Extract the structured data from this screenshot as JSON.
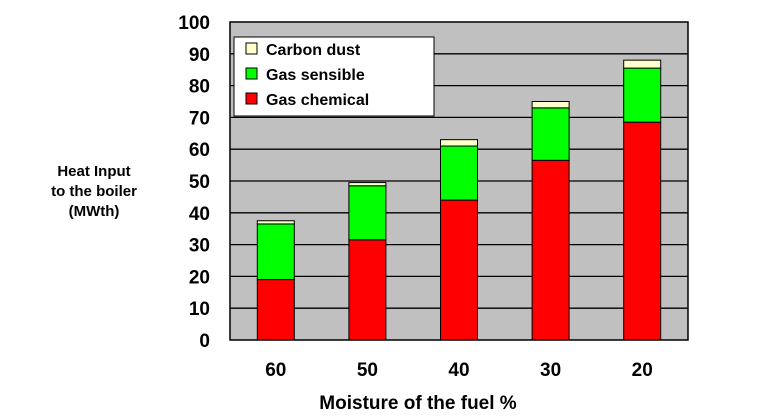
{
  "chart_data": {
    "type": "bar",
    "stacked": true,
    "title": "",
    "xlabel": "Moisture of the fuel %",
    "ylabel_lines": [
      "Heat Input",
      "to the boiler",
      "(MWth)"
    ],
    "categories": [
      "60",
      "50",
      "40",
      "30",
      "20"
    ],
    "series": [
      {
        "name": "Gas chemical",
        "color": "#ff0000",
        "values": [
          19,
          31.5,
          44,
          56.5,
          68.5
        ]
      },
      {
        "name": "Gas sensible",
        "color": "#00ff00",
        "values": [
          17.5,
          17,
          17,
          16.5,
          17
        ]
      },
      {
        "name": "Carbon dust",
        "color": "#ffffcc",
        "values": [
          1,
          1,
          2,
          2,
          2.5
        ]
      }
    ],
    "ylim": [
      0,
      100
    ],
    "yticks": [
      0,
      10,
      20,
      30,
      40,
      50,
      60,
      70,
      80,
      90,
      100
    ],
    "grid": true,
    "plot_background": "#c0c0c0",
    "legend_position": "top-left",
    "legend_order": [
      "Carbon dust",
      "Gas sensible",
      "Gas chemical"
    ]
  }
}
